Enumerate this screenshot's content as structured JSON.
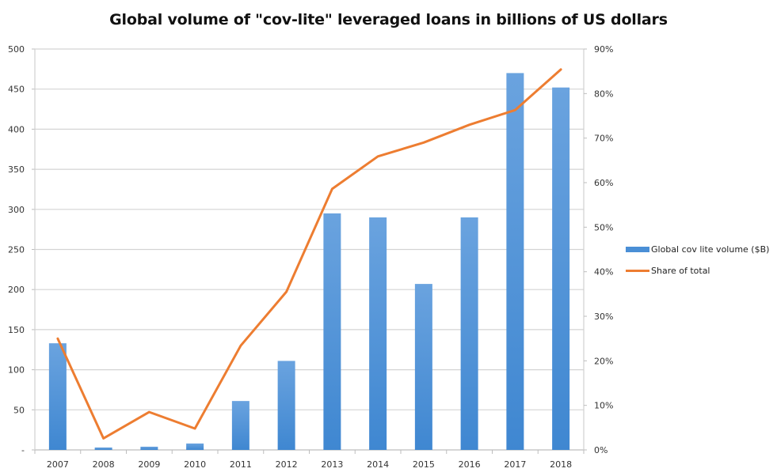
{
  "chart_data": {
    "type": "bar+line",
    "title": "Global volume of \"cov-lite\" leveraged loans in billions of US dollars",
    "categories": [
      "2007",
      "2008",
      "2009",
      "2010",
      "2011",
      "2012",
      "2013",
      "2014",
      "2015",
      "2016",
      "2017",
      "2018"
    ],
    "series": [
      {
        "name": "Global cov lite volume ($B)",
        "type": "bar",
        "axis": "left",
        "color": "#4a8fd6",
        "values": [
          133,
          3,
          4,
          8,
          61,
          111,
          295,
          290,
          207,
          290,
          470,
          452
        ]
      },
      {
        "name": "Share of total",
        "type": "line",
        "axis": "right",
        "color": "#ed7d31",
        "values": [
          25.0,
          2.6,
          8.5,
          4.8,
          23.4,
          35.5,
          58.6,
          65.9,
          69.0,
          73.0,
          76.3,
          85.4
        ]
      }
    ],
    "left_axis": {
      "ylim": [
        0,
        500
      ],
      "ticks": [
        "-",
        "50",
        "100",
        "150",
        "200",
        "250",
        "300",
        "350",
        "400",
        "450",
        "500"
      ]
    },
    "right_axis": {
      "ylim": [
        0,
        90
      ],
      "ticks": [
        "0%",
        "10%",
        "20%",
        "30%",
        "40%",
        "50%",
        "60%",
        "70%",
        "80%",
        "90%"
      ]
    },
    "xlabel": "",
    "ylabel": "",
    "grid": true,
    "legend_position": "right"
  },
  "title": "Global volume of \"cov-lite\" leveraged loans in billions of US dollars",
  "legend": {
    "bar_label": "Global cov lite volume ($B)",
    "line_label": "Share of total"
  }
}
